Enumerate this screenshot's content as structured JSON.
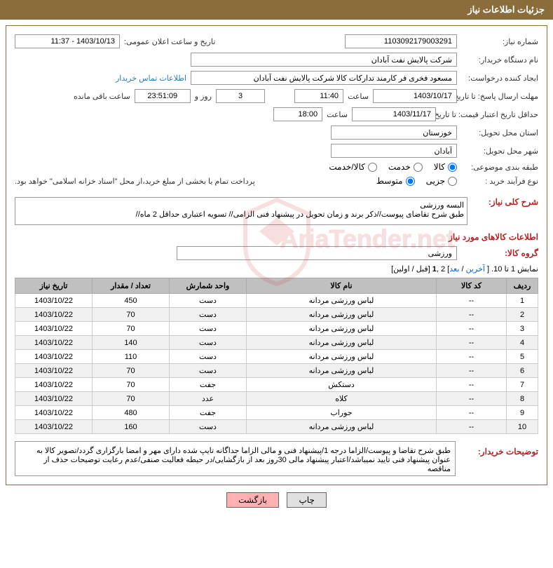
{
  "header": {
    "title": "جزئیات اطلاعات نیاز"
  },
  "form": {
    "need_number": {
      "label": "شماره نیاز:",
      "value": "1103092179003291"
    },
    "publish_date": {
      "label": "تاریخ و ساعت اعلان عمومی:",
      "value": "1403/10/13 - 11:37"
    },
    "buyer_org": {
      "label": "نام دستگاه خریدار:",
      "value": "شرکت پالایش نفت آبادان"
    },
    "requester": {
      "label": "ایجاد کننده درخواست:",
      "value": "مسعود فخری فر کارمند تدارکات کالا شرکت پالایش نفت آبادان"
    },
    "contact_link": "اطلاعات تماس خریدار",
    "response_deadline": {
      "label": "مهلت ارسال پاسخ: تا تاریخ:",
      "date": "1403/10/17",
      "time_label": "ساعت",
      "time": "11:40"
    },
    "remaining": {
      "days": "3",
      "days_label": "روز و",
      "time": "23:51:09",
      "time_label": "ساعت باقی مانده"
    },
    "price_validity": {
      "label": "حداقل تاریخ اعتبار قیمت: تا تاریخ:",
      "date": "1403/11/17",
      "time_label": "ساعت",
      "time": "18:00"
    },
    "delivery_province": {
      "label": "استان محل تحویل:",
      "value": "خوزستان"
    },
    "delivery_city": {
      "label": "شهر محل تحویل:",
      "value": "آبادان"
    },
    "category": {
      "label": "طبقه بندی موضوعی:",
      "options": [
        "کالا",
        "خدمت",
        "کالا/خدمت"
      ]
    },
    "purchase_type": {
      "label": "نوع فرآیند خرید :",
      "options": [
        "جزیی",
        "متوسط"
      ],
      "treasury_text": "پرداخت تمام یا بخشی از مبلغ خرید،از محل \"اسناد خزانه اسلامی\" خواهد بود."
    },
    "need_summary": {
      "label": "شرح کلی نیاز:",
      "value": "البسه ورزشی\nطبق شرح تقاضای پیوست//ذکر برند و زمان تحویل در پیشنهاد فنی الزامی// تسویه اعتباری حداقل 2 ماه//"
    },
    "goods_info_title": "اطلاعات کالاهای مورد نیاز",
    "goods_group": {
      "label": "گروه کالا:",
      "value": "ورزشی"
    },
    "pagination": {
      "text_prefix": "نمایش 1 تا 10. [ ",
      "last_link": "آخرین",
      "sep1": " / ",
      "next_link": "بعد",
      "text_mid": "] 2 ,",
      "one": "1",
      "text_mid2": " [قبل / اولین]"
    },
    "buyer_desc": {
      "label": "توضیحات خریدار:",
      "value": "طبق شرح تقاضا و پیوست/الزاما درجه 1/پیشنهاد فنی و مالی الزاما جداگانه تایپ شده دارای مهر و امضا بارگزاری گردد/تصویر کالا به عنوان پیشنهاد فنی تایید نمیباشد/اعتبار پیشنهاد مالی 30روز بعد از بازگشایی/در حیطه فعالیت صنفی/عدم رعایت توضیحات حذف از مناقصه"
    }
  },
  "table": {
    "columns": [
      "ردیف",
      "کد کالا",
      "نام کالا",
      "واحد شمارش",
      "تعداد / مقدار",
      "تاریخ نیاز"
    ],
    "column_widths": [
      "45px",
      "100px",
      "auto",
      "110px",
      "110px",
      "110px"
    ],
    "rows": [
      [
        "1",
        "--",
        "لباس ورزشی مردانه",
        "دست",
        "450",
        "1403/10/22"
      ],
      [
        "2",
        "--",
        "لباس ورزشی مردانه",
        "دست",
        "70",
        "1403/10/22"
      ],
      [
        "3",
        "--",
        "لباس ورزشی مردانه",
        "دست",
        "70",
        "1403/10/22"
      ],
      [
        "4",
        "--",
        "لباس ورزشی مردانه",
        "دست",
        "140",
        "1403/10/22"
      ],
      [
        "5",
        "--",
        "لباس ورزشی مردانه",
        "دست",
        "110",
        "1403/10/22"
      ],
      [
        "6",
        "--",
        "لباس ورزشی مردانه",
        "دست",
        "70",
        "1403/10/22"
      ],
      [
        "7",
        "--",
        "دستکش",
        "جفت",
        "70",
        "1403/10/22"
      ],
      [
        "8",
        "--",
        "کلاه",
        "عدد",
        "70",
        "1403/10/22"
      ],
      [
        "9",
        "--",
        "جوراب",
        "جفت",
        "480",
        "1403/10/22"
      ],
      [
        "10",
        "--",
        "لباس ورزشی مردانه",
        "دست",
        "160",
        "1403/10/22"
      ]
    ]
  },
  "buttons": {
    "print": "چاپ",
    "back": "بازگشت"
  },
  "colors": {
    "header_bg": "#8a6d3b",
    "header_text": "#ffffff",
    "border": "#8a6d3b",
    "section_title": "#b22222",
    "link": "#0066cc",
    "table_header_bg": "#c0c0c0",
    "table_row_even": "#f0f0f0",
    "btn_back_bg": "#ffb0b0"
  }
}
